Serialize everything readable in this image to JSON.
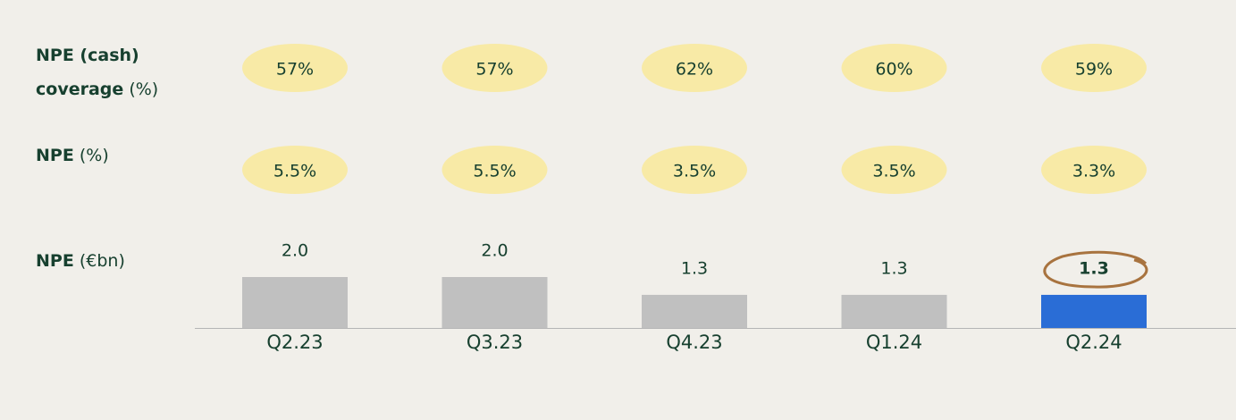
{
  "chart_data": {
    "type": "bar",
    "categories": [
      "Q2.23",
      "Q3.23",
      "Q4.23",
      "Q1.24",
      "Q2.24"
    ],
    "rows": [
      {
        "label_bold": [
          "NPE (cash)",
          "coverage"
        ],
        "unit": "(%)",
        "values": [
          57,
          57,
          62,
          60,
          59
        ],
        "value_labels": [
          "57%",
          "57%",
          "62%",
          "60%",
          "59%"
        ],
        "color": "#f8eaa6"
      },
      {
        "label_bold": [
          "NPE"
        ],
        "unit": "(%)",
        "values": [
          5.5,
          5.5,
          3.5,
          3.5,
          3.3
        ],
        "value_labels": [
          "5.5%",
          "5.5%",
          "3.5%",
          "3.5%",
          "3.3%"
        ],
        "color": "#f8eaa6"
      }
    ],
    "label_bold": "NPE",
    "unit": "(€bn)",
    "values": [
      2.0,
      2.0,
      1.3,
      1.3,
      1.3
    ],
    "value_labels": [
      "2.0",
      "2.0",
      "1.3",
      "1.3",
      "1.3"
    ],
    "colors": [
      "#c0c0c0",
      "#c0c0c0",
      "#c0c0c0",
      "#c0c0c0",
      "#2a6dd6"
    ],
    "highlight": 4,
    "ylim": [
      0,
      2
    ]
  }
}
